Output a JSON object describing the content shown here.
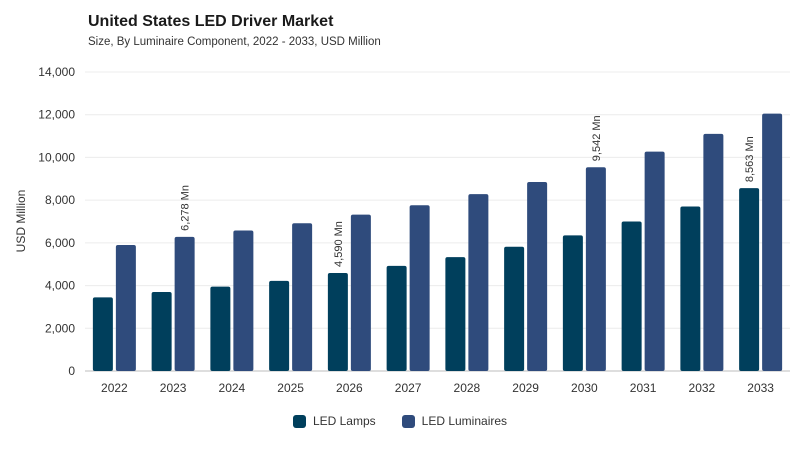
{
  "header": {
    "title": "United States LED Driver Market",
    "subtitle": "Size, By Luminaire Component, 2022 - 2033, USD Million"
  },
  "chart_data": {
    "type": "bar",
    "title": "United States LED Driver Market",
    "subtitle": "Size, By Luminaire Component, 2022 - 2033, USD Million",
    "xlabel": "",
    "ylabel": "USD Million",
    "ylim": [
      0,
      14000
    ],
    "yticks": [
      0,
      2000,
      4000,
      6000,
      8000,
      10000,
      12000,
      14000
    ],
    "ytick_labels": [
      "0",
      "2,000",
      "4,000",
      "6,000",
      "8,000",
      "10,000",
      "12,000",
      "14,000"
    ],
    "categories": [
      "2022",
      "2023",
      "2024",
      "2025",
      "2026",
      "2027",
      "2028",
      "2029",
      "2030",
      "2031",
      "2032",
      "2033"
    ],
    "series": [
      {
        "name": "LED Lamps",
        "color": "#003f5c",
        "values": [
          3450,
          3700,
          3950,
          4220,
          4590,
          4920,
          5330,
          5820,
          6350,
          7000,
          7700,
          8563
        ]
      },
      {
        "name": "LED Luminaires",
        "color": "#2f4b7c",
        "values": [
          5900,
          6278,
          6580,
          6920,
          7320,
          7760,
          8280,
          8850,
          9542,
          10270,
          11100,
          12050
        ]
      }
    ],
    "annotations": [
      {
        "series": 1,
        "index": 1,
        "text": "6,278 Mn"
      },
      {
        "series": 0,
        "index": 4,
        "text": "4,590 Mn"
      },
      {
        "series": 1,
        "index": 8,
        "text": "9,542 Mn"
      },
      {
        "series": 0,
        "index": 11,
        "text": "8,563 Mn"
      }
    ],
    "grid": true,
    "legend_position": "bottom-center"
  }
}
